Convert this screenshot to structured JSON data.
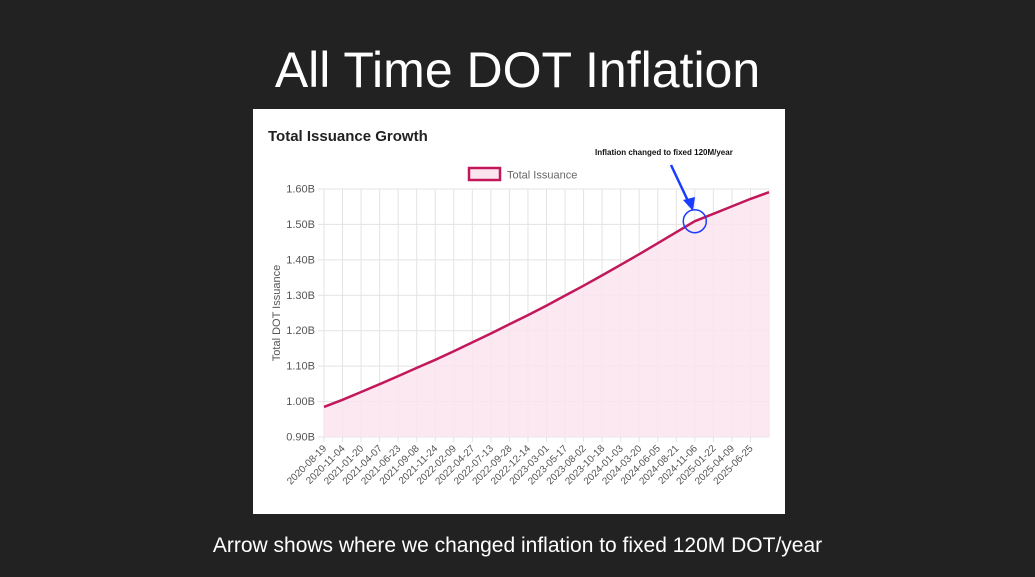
{
  "slide": {
    "title": "All Time DOT Inflation",
    "caption": "Arrow shows where we changed inflation to fixed 120M DOT/year"
  },
  "chart_data": {
    "type": "area",
    "title": "Total Issuance Growth",
    "xlabel": "",
    "ylabel": "Total DOT Issuance",
    "ylim": [
      0.9,
      1.6
    ],
    "y_unit": "B",
    "y_ticks": [
      "0.90B",
      "1.00B",
      "1.10B",
      "1.20B",
      "1.30B",
      "1.40B",
      "1.50B",
      "1.60B"
    ],
    "x_tick_labels": [
      "2020-08-19",
      "2020-11-04",
      "2021-01-20",
      "2021-04-07",
      "2021-06-23",
      "2021-09-08",
      "2021-11-24",
      "2022-02-09",
      "2022-04-27",
      "2022-07-13",
      "2022-09-28",
      "2022-12-14",
      "2023-03-01",
      "2023-05-17",
      "2023-08-02",
      "2023-10-18",
      "2024-01-03",
      "2024-03-20",
      "2024-06-05",
      "2024-08-21",
      "2024-11-06",
      "2025-01-22",
      "2025-04-09",
      "2025-06-25"
    ],
    "legend": {
      "position": "top-center",
      "entries": [
        "Total Issuance"
      ]
    },
    "grid": true,
    "series": [
      {
        "name": "Total Issuance",
        "color": "#c2185b",
        "fill": "#fce4ee",
        "x": [
          "2020-08-19",
          "2020-11-04",
          "2021-01-20",
          "2021-04-07",
          "2021-06-23",
          "2021-09-08",
          "2021-11-24",
          "2022-02-09",
          "2022-04-27",
          "2022-07-13",
          "2022-09-28",
          "2022-12-14",
          "2023-03-01",
          "2023-05-17",
          "2023-08-02",
          "2023-10-18",
          "2024-01-03",
          "2024-03-20",
          "2024-06-05",
          "2024-08-21",
          "2024-11-06",
          "2025-01-22",
          "2025-04-09",
          "2025-06-25",
          "2025-09-10"
        ],
        "values": [
          0.985,
          1.005,
          1.027,
          1.049,
          1.072,
          1.095,
          1.118,
          1.142,
          1.167,
          1.192,
          1.218,
          1.244,
          1.271,
          1.299,
          1.327,
          1.356,
          1.386,
          1.416,
          1.447,
          1.478,
          1.509,
          1.53,
          1.551,
          1.572,
          1.591
        ]
      }
    ],
    "annotations": [
      {
        "text": "Inflation changed to fixed 120M/year",
        "x": "2024-11-06",
        "y": 1.509,
        "marker": "circle",
        "arrow": true,
        "color": "#1a3cff"
      }
    ]
  }
}
